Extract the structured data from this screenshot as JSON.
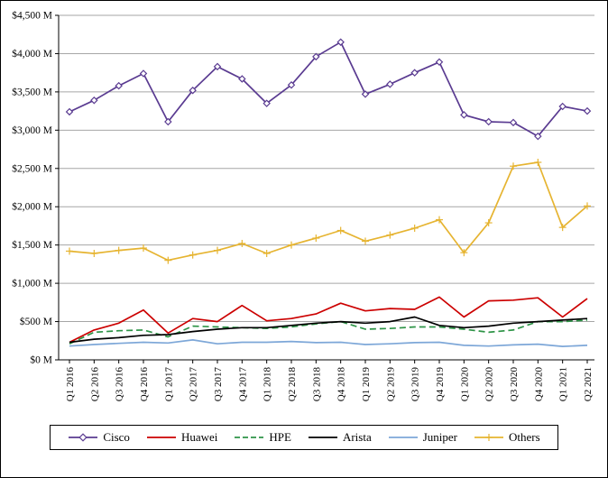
{
  "chart_data": {
    "type": "line",
    "x_categories": [
      "Q1 2016",
      "Q2 2016",
      "Q3 2016",
      "Q4 2016",
      "Q1 2017",
      "Q2 2017",
      "Q3 2017",
      "Q4 2017",
      "Q1 2018",
      "Q2 2018",
      "Q3 2018",
      "Q4 2018",
      "Q1 2019",
      "Q2 2019",
      "Q3 2019",
      "Q4 2019",
      "Q1 2020",
      "Q2 2020",
      "Q3 2020",
      "Q4 2020",
      "Q1 2021",
      "Q2 2021"
    ],
    "ylim": [
      0,
      4500
    ],
    "ytick_step": 500,
    "ytick_prefix": "$",
    "ytick_suffix": " M",
    "grid": true,
    "legend_position": "bottom",
    "colors": {
      "grid": "#a6a6a6",
      "axis": "#000000",
      "background": "#ffffff"
    },
    "series": [
      {
        "name": "Cisco",
        "color": "#5a3b91",
        "marker": "diamond",
        "dash": "solid",
        "values": [
          3240,
          3390,
          3580,
          3740,
          3110,
          3520,
          3830,
          3670,
          3350,
          3590,
          3960,
          4150,
          3470,
          3600,
          3750,
          3890,
          3200,
          3110,
          3100,
          2920,
          3310,
          3250
        ]
      },
      {
        "name": "Huawei",
        "color": "#cc0000",
        "marker": "none",
        "dash": "solid",
        "values": [
          230,
          390,
          480,
          650,
          350,
          540,
          500,
          710,
          510,
          540,
          600,
          740,
          640,
          670,
          660,
          820,
          560,
          770,
          780,
          810,
          560,
          800
        ]
      },
      {
        "name": "HPE",
        "color": "#2e9447",
        "marker": "none",
        "dash": "dashed",
        "values": [
          210,
          360,
          380,
          390,
          300,
          440,
          430,
          420,
          410,
          430,
          470,
          500,
          400,
          410,
          430,
          430,
          400,
          360,
          390,
          500,
          500,
          520
        ]
      },
      {
        "name": "Arista",
        "color": "#000000",
        "marker": "none",
        "dash": "solid",
        "values": [
          230,
          270,
          290,
          320,
          330,
          370,
          400,
          420,
          420,
          450,
          480,
          500,
          480,
          500,
          560,
          450,
          420,
          440,
          480,
          500,
          520,
          540
        ]
      },
      {
        "name": "Juniper",
        "color": "#7da7d8",
        "marker": "none",
        "dash": "solid",
        "values": [
          180,
          200,
          215,
          230,
          220,
          260,
          210,
          230,
          230,
          240,
          225,
          230,
          200,
          210,
          225,
          230,
          190,
          180,
          195,
          205,
          175,
          190
        ]
      },
      {
        "name": "Others",
        "color": "#e6b431",
        "marker": "plus",
        "dash": "solid",
        "values": [
          1420,
          1390,
          1430,
          1460,
          1300,
          1370,
          1430,
          1520,
          1390,
          1500,
          1590,
          1690,
          1550,
          1630,
          1720,
          1830,
          1400,
          1790,
          2530,
          2580,
          1730,
          2010
        ]
      }
    ]
  }
}
